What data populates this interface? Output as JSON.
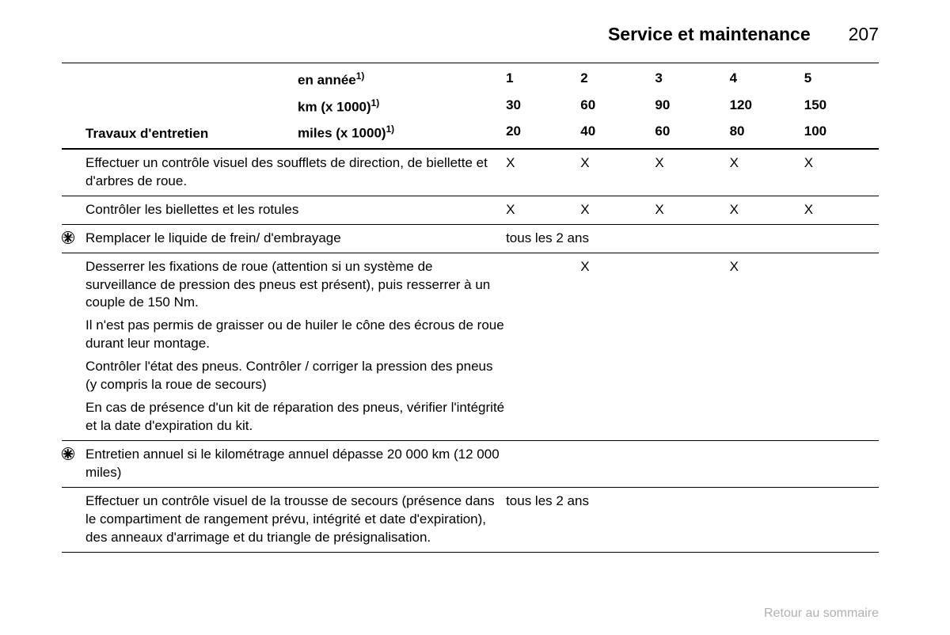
{
  "header": {
    "section_title": "Service et maintenance",
    "page_number": "207"
  },
  "thead": {
    "label_col": "Travaux d'entretien",
    "lines": [
      {
        "label": "en année",
        "sup": "1)",
        "vals": [
          "1",
          "2",
          "3",
          "4",
          "5"
        ]
      },
      {
        "label": "km (x 1000)",
        "sup": "1)",
        "vals": [
          "30",
          "60",
          "90",
          "120",
          "150"
        ]
      },
      {
        "label": "miles (x 1000)",
        "sup": "1)",
        "vals": [
          "20",
          "40",
          "60",
          "80",
          "100"
        ]
      }
    ]
  },
  "rows": [
    {
      "icon": null,
      "paras": [
        "Effectuer un contrôle visuel des soufflets de direction, de biellette et d'arbres de roue."
      ],
      "cells": [
        "X",
        "X",
        "X",
        "X",
        "X"
      ],
      "span_text": null
    },
    {
      "icon": null,
      "paras": [
        "Contrôler les biellettes et les rotules"
      ],
      "cells": [
        "X",
        "X",
        "X",
        "X",
        "X"
      ],
      "span_text": null
    },
    {
      "icon": "wheel",
      "paras": [
        "Remplacer le liquide de frein/ d'embrayage"
      ],
      "cells": null,
      "span_text": "tous les 2 ans"
    },
    {
      "icon": null,
      "paras": [
        "Desserrer les fixations de roue (attention si un système de surveillance de pression des pneus est présent), puis resserrer à un couple de 150 Nm.",
        "Il n'est pas permis de graisser ou de huiler le cône des écrous de roue durant leur montage.",
        "Contrôler l'état des pneus. Contrôler / corriger la pression des pneus (y compris la roue de secours)",
        "En cas de présence d'un kit de réparation des pneus, vérifier l'intégrité et la date d'expiration du kit."
      ],
      "cells": [
        "",
        "X",
        "",
        "X",
        ""
      ],
      "span_text": null
    },
    {
      "icon": "wheel",
      "paras": [
        "Entretien annuel si le kilométrage annuel dépasse 20 000 km (12 000 miles)"
      ],
      "cells": [
        "",
        "",
        "",
        "",
        ""
      ],
      "span_text": null
    },
    {
      "icon": null,
      "paras": [
        "Effectuer un contrôle visuel de la trousse de secours (présence dans le compartiment de rangement prévu, intégrité et date d'expiration), des anneaux d'arrimage et du triangle de présignalisation."
      ],
      "cells": null,
      "span_text": "tous les 2 ans"
    }
  ],
  "footer_link": "Retour au sommaire"
}
